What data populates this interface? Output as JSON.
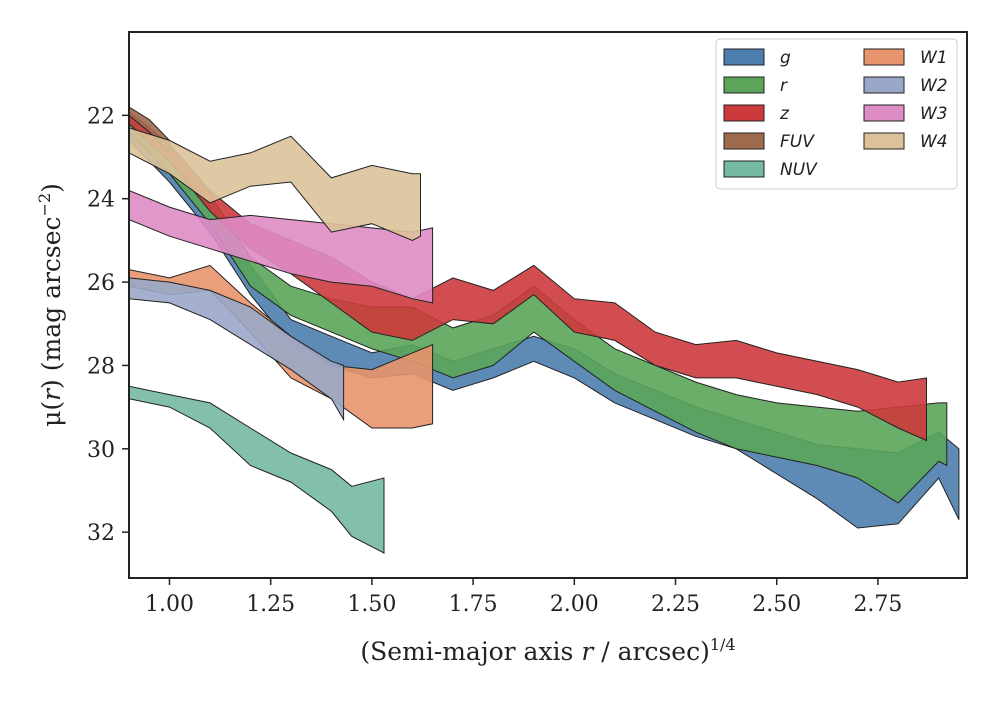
{
  "chart_data": {
    "type": "area",
    "xlabel": "(Semi-major axis r / arcsec)^1/4",
    "xlabel_parts": {
      "pre": "(Semi-major axis ",
      "var": "r",
      "mid": " / arcsec)",
      "sup": "1/4"
    },
    "ylabel": "μ(r) (mag arcsec^−2)",
    "ylabel_parts": {
      "mu": "μ(",
      "var": "r",
      "post": ") (mag arcsec",
      "sup": "−2",
      "close": ")"
    },
    "xlim": [
      0.9,
      2.97
    ],
    "ylim": [
      33.1,
      20.0
    ],
    "y_inverted": true,
    "xticks": [
      1.0,
      1.25,
      1.5,
      1.75,
      2.0,
      2.25,
      2.5,
      2.75
    ],
    "xtick_labels": [
      "1.00",
      "1.25",
      "1.50",
      "1.75",
      "2.00",
      "2.25",
      "2.50",
      "2.75"
    ],
    "yticks": [
      22,
      24,
      26,
      28,
      30,
      32
    ],
    "ytick_labels": [
      "22",
      "24",
      "26",
      "28",
      "30",
      "32"
    ],
    "grid": false,
    "legend": {
      "placement": "top-right",
      "columns": 2
    },
    "series": [
      {
        "name": "g",
        "color": "#4c7eae",
        "upper": [
          [
            0.9,
            22.2
          ],
          [
            1.0,
            23.0
          ],
          [
            1.1,
            24.2
          ],
          [
            1.2,
            25.6
          ],
          [
            1.3,
            26.9
          ],
          [
            1.4,
            27.3
          ],
          [
            1.5,
            27.7
          ],
          [
            1.6,
            27.5
          ],
          [
            1.7,
            27.9
          ],
          [
            1.8,
            27.6
          ],
          [
            1.9,
            27.3
          ],
          [
            2.0,
            27.6
          ],
          [
            2.1,
            28.2
          ],
          [
            2.2,
            28.6
          ],
          [
            2.3,
            29.0
          ],
          [
            2.4,
            29.3
          ],
          [
            2.5,
            29.6
          ],
          [
            2.6,
            29.9
          ],
          [
            2.7,
            30.0
          ],
          [
            2.8,
            30.1
          ],
          [
            2.9,
            29.6
          ],
          [
            2.95,
            30.0
          ]
        ],
        "lower": [
          [
            0.9,
            22.6
          ],
          [
            1.0,
            23.6
          ],
          [
            1.1,
            24.8
          ],
          [
            1.2,
            26.3
          ],
          [
            1.3,
            27.5
          ],
          [
            1.4,
            28.0
          ],
          [
            1.5,
            28.3
          ],
          [
            1.6,
            28.2
          ],
          [
            1.7,
            28.6
          ],
          [
            1.8,
            28.3
          ],
          [
            1.9,
            27.9
          ],
          [
            2.0,
            28.3
          ],
          [
            2.1,
            28.9
          ],
          [
            2.2,
            29.3
          ],
          [
            2.3,
            29.7
          ],
          [
            2.4,
            30.0
          ],
          [
            2.5,
            30.6
          ],
          [
            2.6,
            31.2
          ],
          [
            2.7,
            31.9
          ],
          [
            2.8,
            31.8
          ],
          [
            2.9,
            30.7
          ],
          [
            2.95,
            31.7
          ]
        ]
      },
      {
        "name": "r",
        "color": "#5aa55a",
        "upper": [
          [
            0.9,
            22.0
          ],
          [
            1.0,
            22.8
          ],
          [
            1.1,
            23.9
          ],
          [
            1.2,
            25.4
          ],
          [
            1.3,
            26.1
          ],
          [
            1.4,
            26.4
          ],
          [
            1.5,
            26.6
          ],
          [
            1.6,
            26.6
          ],
          [
            1.7,
            27.1
          ],
          [
            1.8,
            26.8
          ],
          [
            1.9,
            26.1
          ],
          [
            2.0,
            26.9
          ],
          [
            2.1,
            27.6
          ],
          [
            2.2,
            28.0
          ],
          [
            2.3,
            28.4
          ],
          [
            2.4,
            28.7
          ],
          [
            2.5,
            28.9
          ],
          [
            2.6,
            29.0
          ],
          [
            2.7,
            29.1
          ],
          [
            2.8,
            29.0
          ],
          [
            2.9,
            28.9
          ],
          [
            2.92,
            28.9
          ]
        ],
        "lower": [
          [
            0.9,
            22.4
          ],
          [
            1.0,
            23.4
          ],
          [
            1.1,
            24.6
          ],
          [
            1.2,
            26.1
          ],
          [
            1.3,
            26.8
          ],
          [
            1.4,
            27.2
          ],
          [
            1.5,
            27.6
          ],
          [
            1.6,
            27.9
          ],
          [
            1.7,
            28.3
          ],
          [
            1.8,
            28.0
          ],
          [
            1.9,
            27.2
          ],
          [
            2.0,
            27.9
          ],
          [
            2.1,
            28.6
          ],
          [
            2.2,
            29.1
          ],
          [
            2.3,
            29.6
          ],
          [
            2.4,
            30.0
          ],
          [
            2.5,
            30.2
          ],
          [
            2.6,
            30.4
          ],
          [
            2.7,
            30.7
          ],
          [
            2.8,
            31.3
          ],
          [
            2.9,
            30.3
          ],
          [
            2.92,
            30.4
          ]
        ]
      },
      {
        "name": "z",
        "color": "#cc3a3c",
        "upper": [
          [
            0.9,
            21.9
          ],
          [
            1.0,
            22.7
          ],
          [
            1.1,
            23.8
          ],
          [
            1.2,
            24.6
          ],
          [
            1.3,
            25.0
          ],
          [
            1.4,
            25.4
          ],
          [
            1.5,
            26.0
          ],
          [
            1.6,
            26.4
          ],
          [
            1.7,
            25.9
          ],
          [
            1.8,
            26.2
          ],
          [
            1.9,
            25.6
          ],
          [
            2.0,
            26.4
          ],
          [
            2.1,
            26.5
          ],
          [
            2.2,
            27.2
          ],
          [
            2.3,
            27.5
          ],
          [
            2.4,
            27.4
          ],
          [
            2.5,
            27.7
          ],
          [
            2.6,
            27.9
          ],
          [
            2.7,
            28.1
          ],
          [
            2.8,
            28.4
          ],
          [
            2.87,
            28.3
          ]
        ],
        "lower": [
          [
            0.9,
            22.2
          ],
          [
            1.0,
            23.1
          ],
          [
            1.1,
            24.3
          ],
          [
            1.2,
            25.2
          ],
          [
            1.3,
            25.8
          ],
          [
            1.4,
            26.5
          ],
          [
            1.5,
            27.2
          ],
          [
            1.6,
            27.4
          ],
          [
            1.7,
            26.9
          ],
          [
            1.8,
            27.0
          ],
          [
            1.9,
            26.3
          ],
          [
            2.0,
            27.2
          ],
          [
            2.1,
            27.4
          ],
          [
            2.2,
            28.0
          ],
          [
            2.3,
            28.3
          ],
          [
            2.4,
            28.3
          ],
          [
            2.5,
            28.5
          ],
          [
            2.6,
            28.7
          ],
          [
            2.7,
            29.0
          ],
          [
            2.8,
            29.5
          ],
          [
            2.87,
            29.8
          ]
        ]
      },
      {
        "name": "FUV",
        "color": "#9e6a4c",
        "upper": [
          [
            0.9,
            21.8
          ],
          [
            0.95,
            22.1
          ],
          [
            1.0,
            22.6
          ]
        ],
        "lower": [
          [
            0.9,
            22.0
          ],
          [
            0.95,
            22.4
          ],
          [
            1.0,
            22.9
          ]
        ]
      },
      {
        "name": "NUV",
        "color": "#74b9a0",
        "upper": [
          [
            0.9,
            28.5
          ],
          [
            1.0,
            28.7
          ],
          [
            1.1,
            28.9
          ],
          [
            1.2,
            29.5
          ],
          [
            1.3,
            30.1
          ],
          [
            1.4,
            30.5
          ],
          [
            1.45,
            30.9
          ],
          [
            1.53,
            30.7
          ]
        ],
        "lower": [
          [
            0.9,
            28.8
          ],
          [
            1.0,
            29.0
          ],
          [
            1.1,
            29.5
          ],
          [
            1.2,
            30.4
          ],
          [
            1.3,
            30.8
          ],
          [
            1.4,
            31.5
          ],
          [
            1.45,
            32.1
          ],
          [
            1.53,
            32.5
          ]
        ]
      },
      {
        "name": "W1",
        "color": "#e8946c",
        "upper": [
          [
            0.9,
            25.7
          ],
          [
            1.0,
            25.9
          ],
          [
            1.1,
            25.6
          ],
          [
            1.2,
            26.5
          ],
          [
            1.3,
            27.3
          ],
          [
            1.4,
            28.0
          ],
          [
            1.5,
            28.1
          ],
          [
            1.6,
            27.7
          ],
          [
            1.65,
            27.5
          ]
        ],
        "lower": [
          [
            0.9,
            26.1
          ],
          [
            1.0,
            26.3
          ],
          [
            1.1,
            26.2
          ],
          [
            1.2,
            27.2
          ],
          [
            1.3,
            28.3
          ],
          [
            1.4,
            28.8
          ],
          [
            1.5,
            29.5
          ],
          [
            1.6,
            29.5
          ],
          [
            1.65,
            29.4
          ]
        ]
      },
      {
        "name": "W2",
        "color": "#9aa7c8",
        "upper": [
          [
            0.9,
            25.9
          ],
          [
            1.0,
            26.0
          ],
          [
            1.1,
            26.2
          ],
          [
            1.2,
            26.6
          ],
          [
            1.3,
            27.3
          ],
          [
            1.4,
            27.9
          ],
          [
            1.43,
            28.0
          ]
        ],
        "lower": [
          [
            0.9,
            26.4
          ],
          [
            1.0,
            26.5
          ],
          [
            1.1,
            26.9
          ],
          [
            1.2,
            27.5
          ],
          [
            1.3,
            28.1
          ],
          [
            1.4,
            28.8
          ],
          [
            1.43,
            29.3
          ]
        ]
      },
      {
        "name": "W3",
        "color": "#de8cc4",
        "upper": [
          [
            0.9,
            23.8
          ],
          [
            1.0,
            24.2
          ],
          [
            1.1,
            24.5
          ],
          [
            1.2,
            24.4
          ],
          [
            1.3,
            24.5
          ],
          [
            1.4,
            24.6
          ],
          [
            1.5,
            24.7
          ],
          [
            1.6,
            24.8
          ],
          [
            1.65,
            24.7
          ]
        ],
        "lower": [
          [
            0.9,
            24.5
          ],
          [
            1.0,
            24.9
          ],
          [
            1.1,
            25.2
          ],
          [
            1.2,
            25.5
          ],
          [
            1.3,
            25.8
          ],
          [
            1.4,
            26.0
          ],
          [
            1.5,
            26.1
          ],
          [
            1.6,
            26.4
          ],
          [
            1.65,
            26.5
          ]
        ]
      },
      {
        "name": "W4",
        "color": "#dcc29a",
        "upper": [
          [
            0.9,
            22.3
          ],
          [
            1.0,
            22.6
          ],
          [
            1.1,
            23.1
          ],
          [
            1.2,
            22.9
          ],
          [
            1.3,
            22.5
          ],
          [
            1.4,
            23.5
          ],
          [
            1.5,
            23.2
          ],
          [
            1.6,
            23.4
          ],
          [
            1.62,
            23.4
          ]
        ],
        "lower": [
          [
            0.9,
            22.9
          ],
          [
            1.0,
            23.4
          ],
          [
            1.1,
            24.1
          ],
          [
            1.2,
            23.7
          ],
          [
            1.3,
            23.6
          ],
          [
            1.4,
            24.8
          ],
          [
            1.5,
            24.6
          ],
          [
            1.6,
            25.0
          ],
          [
            1.62,
            24.9
          ]
        ]
      }
    ]
  }
}
